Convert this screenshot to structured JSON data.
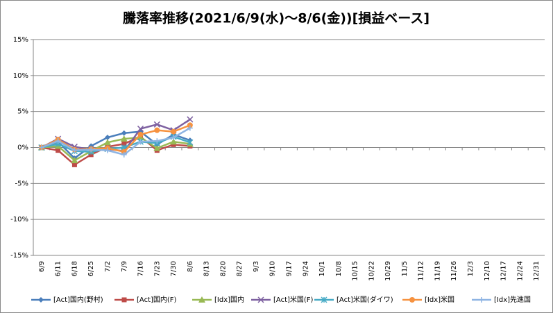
{
  "chart_data": {
    "type": "line",
    "title": "騰落率推移(2021/6/9(水)～8/6(金))[損益ベース]",
    "categories": [
      "6/9",
      "6/11",
      "6/18",
      "6/25",
      "7/2",
      "7/9",
      "7/16",
      "7/23",
      "7/30",
      "8/6",
      "8/13",
      "8/20",
      "8/27",
      "9/3",
      "9/10",
      "9/17",
      "9/24",
      "10/1",
      "10/8",
      "10/15",
      "10/22",
      "10/29",
      "11/5",
      "11/12",
      "11/19",
      "11/26",
      "12/3",
      "12/10",
      "12/17",
      "12/24",
      "12/31"
    ],
    "series": [
      {
        "name": "[Act]国内(野村)",
        "color": "#4a7ebb",
        "marker": "diamond",
        "values": [
          0,
          0.8,
          -1.5,
          0.2,
          1.4,
          2.0,
          2.2,
          0.4,
          1.8,
          1.0,
          null,
          null,
          null,
          null,
          null,
          null,
          null,
          null,
          null,
          null,
          null,
          null,
          null,
          null,
          null,
          null,
          null,
          null,
          null,
          null,
          null
        ]
      },
      {
        "name": "[Act]国内(F)",
        "color": "#be4b48",
        "marker": "square",
        "values": [
          0,
          -0.4,
          -2.4,
          -1.0,
          0.1,
          0.5,
          1.5,
          -0.4,
          0.4,
          0.2,
          null,
          null,
          null,
          null,
          null,
          null,
          null,
          null,
          null,
          null,
          null,
          null,
          null,
          null,
          null,
          null,
          null,
          null,
          null,
          null,
          null
        ]
      },
      {
        "name": "[Idx]国内",
        "color": "#98b954",
        "marker": "triangle",
        "values": [
          0,
          0.2,
          -1.8,
          -0.5,
          0.7,
          1.2,
          1.4,
          -0.1,
          0.8,
          0.5,
          null,
          null,
          null,
          null,
          null,
          null,
          null,
          null,
          null,
          null,
          null,
          null,
          null,
          null,
          null,
          null,
          null,
          null,
          null,
          null,
          null
        ]
      },
      {
        "name": "[Act]米国(F)",
        "color": "#7d60a0",
        "marker": "x",
        "values": [
          0,
          1.2,
          0.1,
          -0.3,
          -0.2,
          -0.5,
          2.6,
          3.2,
          2.4,
          3.9,
          null,
          null,
          null,
          null,
          null,
          null,
          null,
          null,
          null,
          null,
          null,
          null,
          null,
          null,
          null,
          null,
          null,
          null,
          null,
          null,
          null
        ]
      },
      {
        "name": "[Act]米国(ダイワ)",
        "color": "#46aac5",
        "marker": "star",
        "values": [
          0,
          0.5,
          -0.5,
          -0.6,
          -0.2,
          0.0,
          0.8,
          0.6,
          1.5,
          0.7,
          null,
          null,
          null,
          null,
          null,
          null,
          null,
          null,
          null,
          null,
          null,
          null,
          null,
          null,
          null,
          null,
          null,
          null,
          null,
          null,
          null
        ]
      },
      {
        "name": "[Idx]米国",
        "color": "#f69240",
        "marker": "circle",
        "values": [
          0,
          1.1,
          -0.3,
          -0.2,
          -0.1,
          -0.6,
          1.8,
          2.4,
          2.2,
          3.1,
          null,
          null,
          null,
          null,
          null,
          null,
          null,
          null,
          null,
          null,
          null,
          null,
          null,
          null,
          null,
          null,
          null,
          null,
          null,
          null,
          null
        ]
      },
      {
        "name": "[Idx]先進国",
        "color": "#8eb4e3",
        "marker": "plus",
        "values": [
          0,
          0.9,
          -0.4,
          -0.3,
          -0.4,
          -1.0,
          0.8,
          0.9,
          1.4,
          2.7,
          null,
          null,
          null,
          null,
          null,
          null,
          null,
          null,
          null,
          null,
          null,
          null,
          null,
          null,
          null,
          null,
          null,
          null,
          null,
          null,
          null
        ]
      }
    ],
    "ylim": [
      -15,
      15
    ],
    "yticks": [
      {
        "value": -15,
        "label": "-15%"
      },
      {
        "value": -10,
        "label": "-10%"
      },
      {
        "value": -5,
        "label": "-5%"
      },
      {
        "value": 0,
        "label": "0%"
      },
      {
        "value": 5,
        "label": "5%"
      },
      {
        "value": 10,
        "label": "10%"
      },
      {
        "value": 15,
        "label": "15%"
      }
    ],
    "grid": true,
    "legend": "bottom"
  }
}
